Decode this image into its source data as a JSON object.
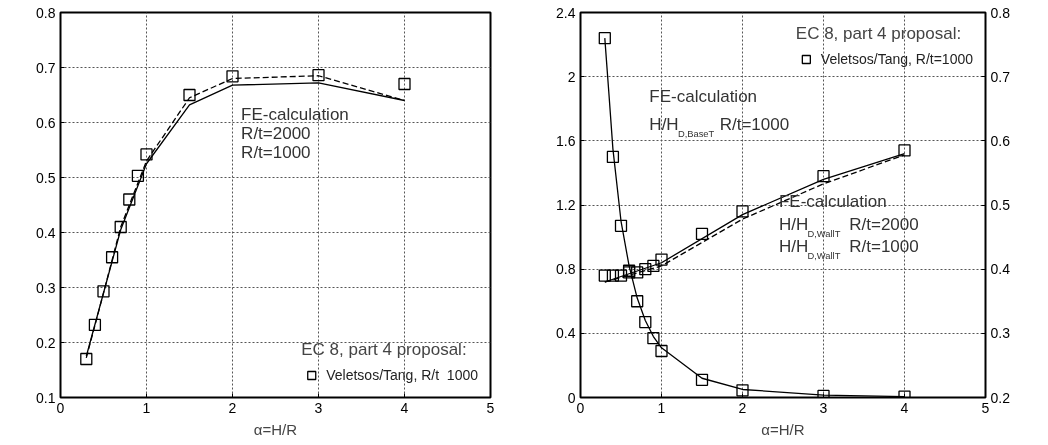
{
  "chart_data": [
    {
      "type": "line",
      "xlabel": "α=H/R",
      "xlim": [
        0,
        5
      ],
      "xticks": [
        0,
        1,
        2,
        3,
        4,
        5
      ],
      "ylim": [
        0.1,
        0.8
      ],
      "yticks": [
        0.1,
        0.2,
        0.3,
        0.4,
        0.5,
        0.6,
        0.7,
        0.8
      ],
      "grid": true,
      "legend": "bottom right",
      "legend_title": "EC 8, part 4 proposal:",
      "series": [
        {
          "line_style": "dashed",
          "color": "#000000",
          "x": [
            0.3,
            0.5,
            0.7,
            1.0,
            1.5,
            2,
            3,
            4
          ],
          "values": [
            0.172,
            0.29,
            0.41,
            0.53,
            0.645,
            0.68,
            0.685,
            0.64
          ]
        },
        {
          "line_style": "solid",
          "color": "#000000",
          "x": [
            0.3,
            0.5,
            0.7,
            1.0,
            1.5,
            2,
            3,
            4
          ],
          "values": [
            0.175,
            0.29,
            0.405,
            0.525,
            0.632,
            0.668,
            0.672,
            0.64
          ]
        },
        {
          "type": "scatter",
          "marker": "square",
          "name": "Veletsos/Tang, R/t  1000",
          "color": "#000000",
          "x": [
            0.3,
            0.4,
            0.5,
            0.6,
            0.7,
            0.8,
            0.9,
            1.0,
            1.5,
            2,
            3,
            4
          ],
          "values": [
            0.17,
            0.232,
            0.293,
            0.355,
            0.41,
            0.46,
            0.503,
            0.542,
            0.65,
            0.684,
            0.686,
            0.67
          ]
        }
      ],
      "annotations": [
        "FE-calculation",
        "R/t=2000",
        "R/t=1000"
      ]
    },
    {
      "type": "line",
      "xlabel": "α=H/R",
      "xlim": [
        0,
        5
      ],
      "xticks": [
        0,
        1,
        2,
        3,
        4,
        5
      ],
      "ylim": [
        0,
        2.4
      ],
      "yticks": [
        0,
        0.4,
        0.8,
        1.2,
        1.6,
        2,
        2.4
      ],
      "y2lim": [
        0.2,
        0.8
      ],
      "y2ticks": [
        0.2,
        0.3,
        0.4,
        0.5,
        0.6,
        0.7,
        0.8
      ],
      "grid": true,
      "legend": "top right",
      "legend_title": "EC 8, part 4 proposal:",
      "series": [
        {
          "line_style": "solid",
          "color": "#000000",
          "x": [
            0.3,
            0.35,
            0.4,
            0.5,
            0.6,
            0.7,
            0.8,
            0.9,
            1.0,
            1.5,
            2,
            3,
            4
          ],
          "values": [
            2.24,
            1.9,
            1.55,
            1.1,
            0.82,
            0.62,
            0.48,
            0.38,
            0.31,
            0.12,
            0.05,
            0.015,
            0.005
          ]
        },
        {
          "type": "scatter",
          "marker": "square",
          "name": "Veletsos/Tang, R/t=1000",
          "color": "#000000",
          "x": [
            0.3,
            0.4,
            0.5,
            0.6,
            0.7,
            0.8,
            0.9,
            1.0,
            1.5,
            2,
            3,
            4
          ],
          "values": [
            2.24,
            1.5,
            1.07,
            0.79,
            0.6,
            0.47,
            0.37,
            0.29,
            0.11,
            0.045,
            0.01,
            0.005
          ]
        },
        {
          "axis": "y2",
          "line_style": "dashed",
          "color": "#000000",
          "x": [
            0.3,
            1,
            2,
            3,
            4
          ],
          "values": [
            0.38,
            0.405,
            0.478,
            0.533,
            0.578
          ]
        },
        {
          "axis": "y2",
          "line_style": "solid",
          "color": "#000000",
          "x": [
            0.3,
            1,
            2,
            3,
            4
          ],
          "values": [
            0.38,
            0.41,
            0.485,
            0.54,
            0.58
          ]
        },
        {
          "type": "scatter",
          "axis": "y2",
          "marker": "square",
          "color": "#000000",
          "x": [
            0.3,
            0.4,
            0.5,
            0.6,
            0.7,
            0.8,
            0.9,
            1.0,
            1.5,
            2,
            3,
            4
          ],
          "values": [
            0.39,
            0.39,
            0.39,
            0.395,
            0.395,
            0.4,
            0.405,
            0.415,
            0.455,
            0.49,
            0.545,
            0.585
          ]
        }
      ],
      "annotations": [
        "FE-calculation",
        "H/H$_{D,BaseT}$ R/t=1000",
        "FE-calculation",
        "H/H$_{D,WallT}$ R/t=2000",
        "H/H$_{D,WallT}$ R/t=1000"
      ]
    }
  ]
}
